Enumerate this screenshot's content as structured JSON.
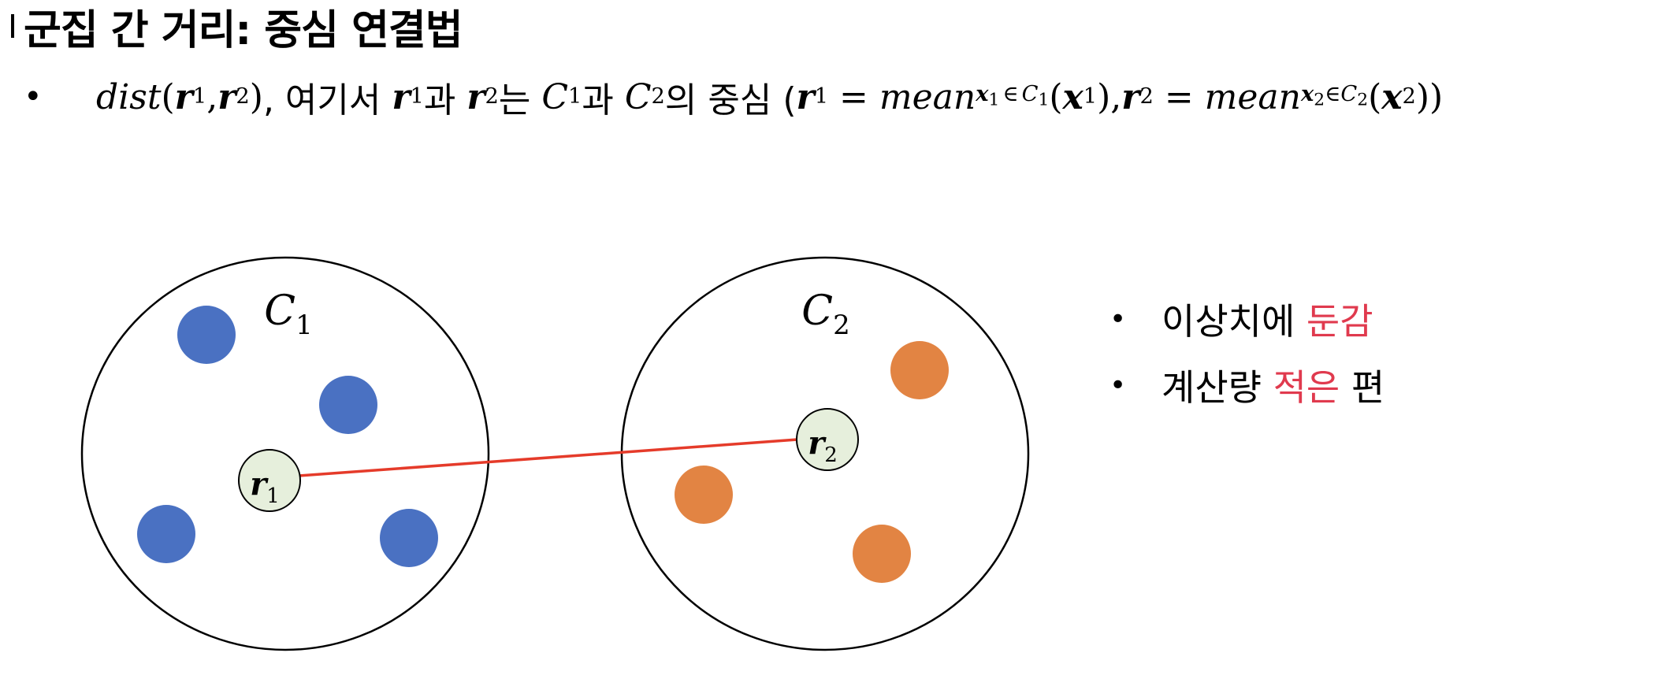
{
  "title": "군집 간 거리: 중심 연결법",
  "formula": {
    "dist": "dist",
    "r": "r",
    "one": "1",
    "two": "2",
    "comma": ",",
    "where_text": ", 여기서 ",
    "and1": "과 ",
    "topic_marker": "는 ",
    "C": "C",
    "and2": "과 ",
    "possessive_center": "의 중심 (",
    "equals": " = ",
    "mean": "mean",
    "x": "x",
    "elem": "∈",
    "lparen": "(",
    "rparen": ")",
    "close": "))"
  },
  "diagram": {
    "cluster1_label": "C",
    "cluster1_sub": "1",
    "cluster2_label": "C",
    "cluster2_sub": "2",
    "centroid1_label": "r",
    "centroid1_sub": "1",
    "centroid2_label": "r",
    "centroid2_sub": "2",
    "colors": {
      "cluster1_points": "#4a71c2",
      "cluster2_points": "#e28443",
      "centroid_fill": "#e6efdc",
      "link_line": "#e53b2a",
      "circle_stroke": "#000000"
    }
  },
  "notes": [
    {
      "before": "이상치에 ",
      "highlight": "둔감",
      "after": ""
    },
    {
      "before": "계산량 ",
      "highlight": "적은",
      "after": " 편"
    }
  ],
  "highlight_color": "#e03a4e"
}
